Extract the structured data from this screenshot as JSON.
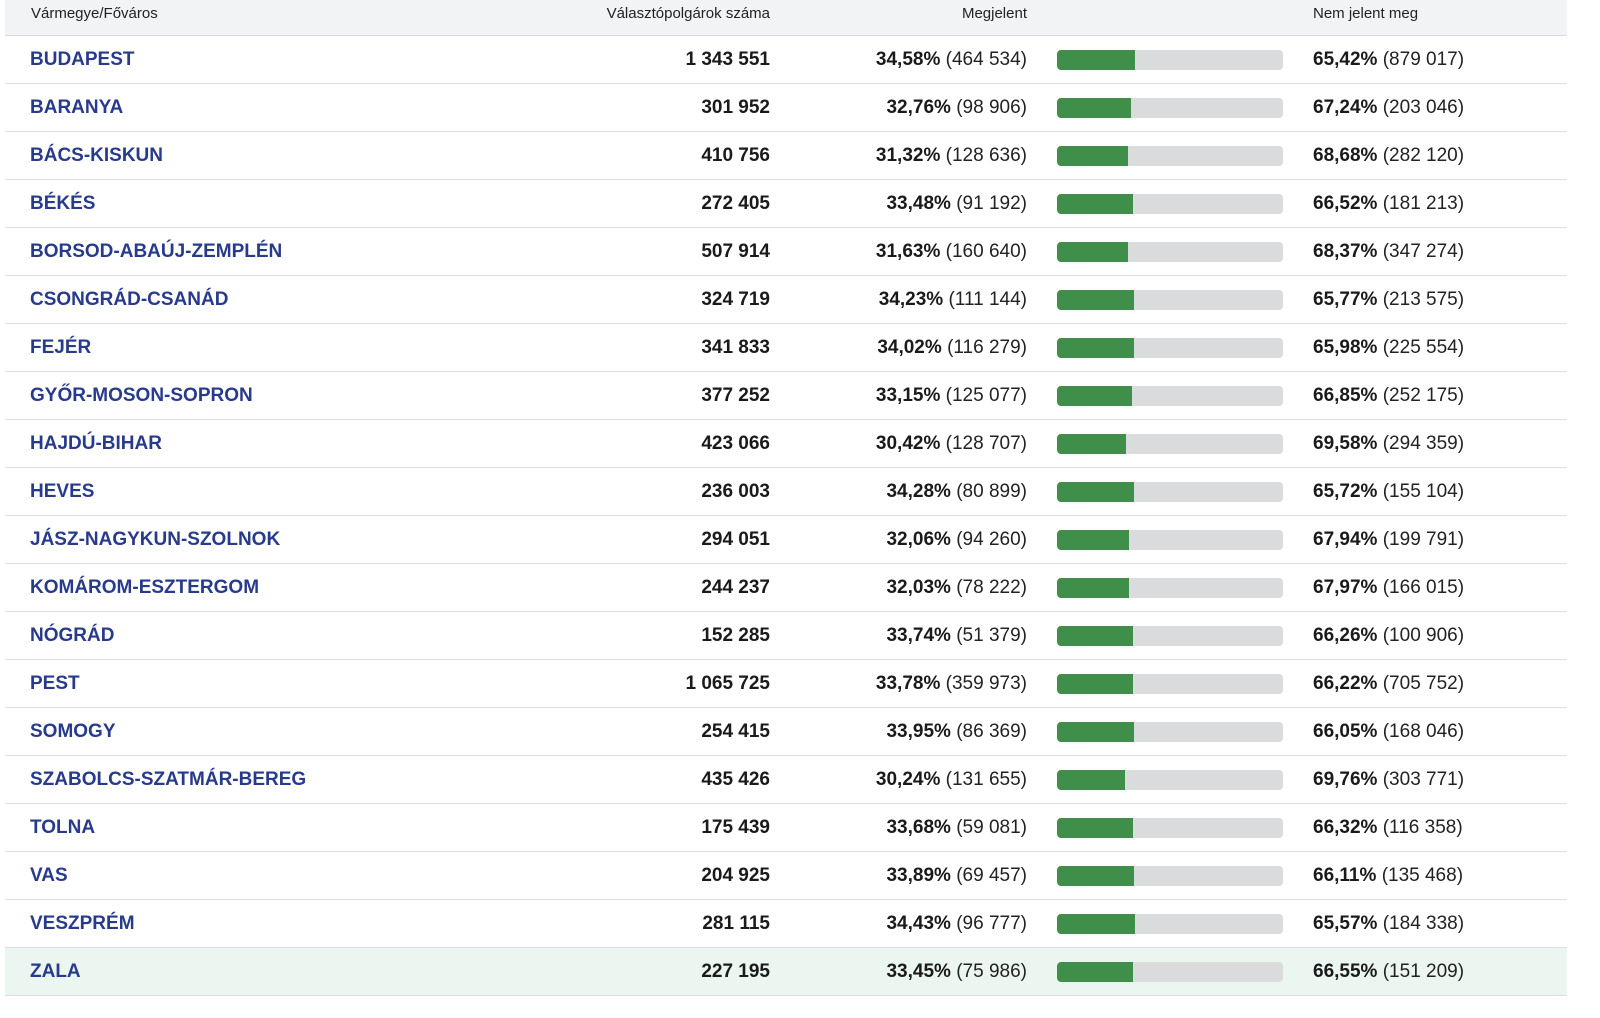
{
  "header": {
    "county": "Vármegye/Főváros",
    "voters": "Választópolgárok száma",
    "appeared": "Megjelent",
    "absent": "Nem jelent meg"
  },
  "colors": {
    "bar_fill": "#3f8f4a",
    "bar_track": "#d9dbdd",
    "county_link": "#283a8c",
    "highlight_row": "#eaf6ef"
  },
  "rows": [
    {
      "county": "BUDAPEST",
      "voters": "1 343 551",
      "appeared_pct": "34,58%",
      "appeared_count": "(464 534)",
      "absent_pct": "65,42%",
      "absent_count": "(879 017)",
      "turnout": 0.3458
    },
    {
      "county": "BARANYA",
      "voters": "301 952",
      "appeared_pct": "32,76%",
      "appeared_count": "(98 906)",
      "absent_pct": "67,24%",
      "absent_count": "(203 046)",
      "turnout": 0.3276
    },
    {
      "county": "BÁCS-KISKUN",
      "voters": "410 756",
      "appeared_pct": "31,32%",
      "appeared_count": "(128 636)",
      "absent_pct": "68,68%",
      "absent_count": "(282 120)",
      "turnout": 0.3132
    },
    {
      "county": "BÉKÉS",
      "voters": "272 405",
      "appeared_pct": "33,48%",
      "appeared_count": "(91 192)",
      "absent_pct": "66,52%",
      "absent_count": "(181 213)",
      "turnout": 0.3348
    },
    {
      "county": "BORSOD-ABAÚJ-ZEMPLÉN",
      "voters": "507 914",
      "appeared_pct": "31,63%",
      "appeared_count": "(160 640)",
      "absent_pct": "68,37%",
      "absent_count": "(347 274)",
      "turnout": 0.3163
    },
    {
      "county": "CSONGRÁD-CSANÁD",
      "voters": "324 719",
      "appeared_pct": "34,23%",
      "appeared_count": "(111 144)",
      "absent_pct": "65,77%",
      "absent_count": "(213 575)",
      "turnout": 0.3423
    },
    {
      "county": "FEJÉR",
      "voters": "341 833",
      "appeared_pct": "34,02%",
      "appeared_count": "(116 279)",
      "absent_pct": "65,98%",
      "absent_count": "(225 554)",
      "turnout": 0.3402
    },
    {
      "county": "GYŐR-MOSON-SOPRON",
      "voters": "377 252",
      "appeared_pct": "33,15%",
      "appeared_count": "(125 077)",
      "absent_pct": "66,85%",
      "absent_count": "(252 175)",
      "turnout": 0.3315
    },
    {
      "county": "HAJDÚ-BIHAR",
      "voters": "423 066",
      "appeared_pct": "30,42%",
      "appeared_count": "(128 707)",
      "absent_pct": "69,58%",
      "absent_count": "(294 359)",
      "turnout": 0.3042
    },
    {
      "county": "HEVES",
      "voters": "236 003",
      "appeared_pct": "34,28%",
      "appeared_count": "(80 899)",
      "absent_pct": "65,72%",
      "absent_count": "(155 104)",
      "turnout": 0.3428
    },
    {
      "county": "JÁSZ-NAGYKUN-SZOLNOK",
      "voters": "294 051",
      "appeared_pct": "32,06%",
      "appeared_count": "(94 260)",
      "absent_pct": "67,94%",
      "absent_count": "(199 791)",
      "turnout": 0.3206
    },
    {
      "county": "KOMÁROM-ESZTERGOM",
      "voters": "244 237",
      "appeared_pct": "32,03%",
      "appeared_count": "(78 222)",
      "absent_pct": "67,97%",
      "absent_count": "(166 015)",
      "turnout": 0.3203
    },
    {
      "county": "NÓGRÁD",
      "voters": "152 285",
      "appeared_pct": "33,74%",
      "appeared_count": "(51 379)",
      "absent_pct": "66,26%",
      "absent_count": "(100 906)",
      "turnout": 0.3374
    },
    {
      "county": "PEST",
      "voters": "1 065 725",
      "appeared_pct": "33,78%",
      "appeared_count": "(359 973)",
      "absent_pct": "66,22%",
      "absent_count": "(705 752)",
      "turnout": 0.3378
    },
    {
      "county": "SOMOGY",
      "voters": "254 415",
      "appeared_pct": "33,95%",
      "appeared_count": "(86 369)",
      "absent_pct": "66,05%",
      "absent_count": "(168 046)",
      "turnout": 0.3395
    },
    {
      "county": "SZABOLCS-SZATMÁR-BEREG",
      "voters": "435 426",
      "appeared_pct": "30,24%",
      "appeared_count": "(131 655)",
      "absent_pct": "69,76%",
      "absent_count": "(303 771)",
      "turnout": 0.3024
    },
    {
      "county": "TOLNA",
      "voters": "175 439",
      "appeared_pct": "33,68%",
      "appeared_count": "(59 081)",
      "absent_pct": "66,32%",
      "absent_count": "(116 358)",
      "turnout": 0.3368
    },
    {
      "county": "VAS",
      "voters": "204 925",
      "appeared_pct": "33,89%",
      "appeared_count": "(69 457)",
      "absent_pct": "66,11%",
      "absent_count": "(135 468)",
      "turnout": 0.3389
    },
    {
      "county": "VESZPRÉM",
      "voters": "281 115",
      "appeared_pct": "34,43%",
      "appeared_count": "(96 777)",
      "absent_pct": "65,57%",
      "absent_count": "(184 338)",
      "turnout": 0.3443
    },
    {
      "county": "ZALA",
      "voters": "227 195",
      "appeared_pct": "33,45%",
      "appeared_count": "(75 986)",
      "absent_pct": "66,55%",
      "absent_count": "(151 209)",
      "turnout": 0.3345,
      "highlighted": true
    }
  ]
}
